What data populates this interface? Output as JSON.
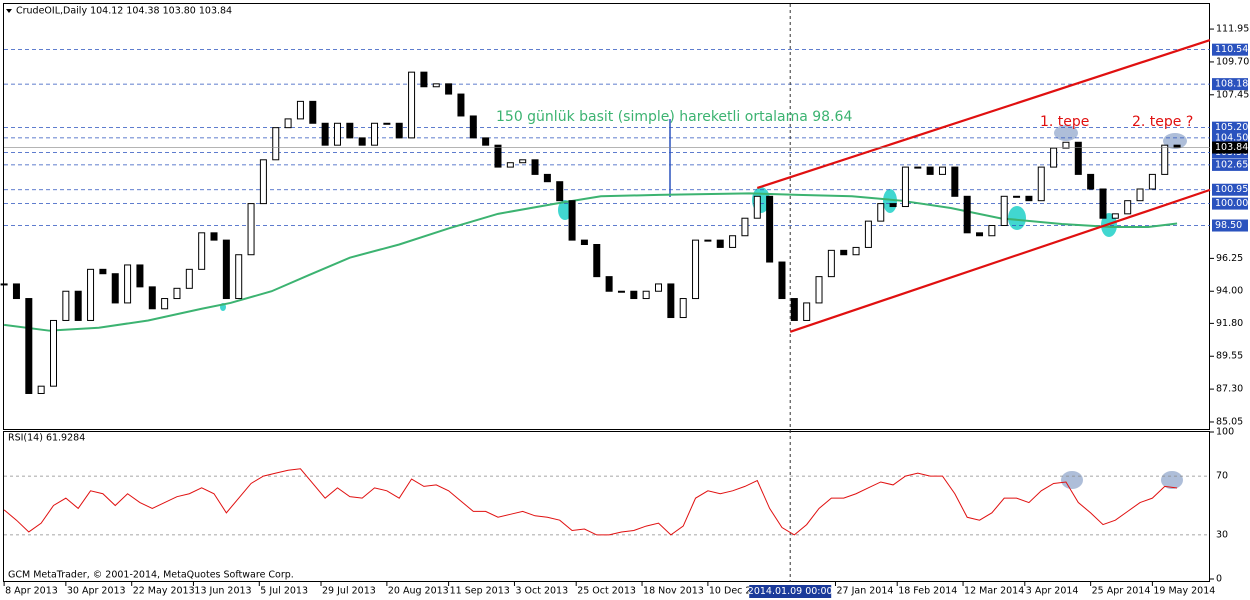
{
  "chart_data": {
    "type": "candlestick",
    "title": "CrudeOIL,Daily  104.12 104.38 103.80 103.84",
    "footer": "GCM MetaTrader, © 2001-2014, MetaQuotes Software Corp.",
    "xlim": [
      -1,
      293
    ],
    "ylim": [
      84.5,
      113.94
    ],
    "yticks": [
      111.95,
      {
        "value": 109.7,
        "label": "109.70"
      },
      107.45,
      96.25,
      {
        "value": 94,
        "label": "94.00"
      },
      {
        "value": 91.8,
        "label": "91.80"
      },
      89.55,
      {
        "value": 87.3,
        "label": "87.30"
      },
      85.05
    ],
    "xticks": [
      {
        "value": 0,
        "label": "8 Apr 2013"
      },
      {
        "value": 15,
        "label": "30 Apr 2013"
      },
      {
        "value": 31,
        "label": "22 May 2013"
      },
      {
        "value": 46,
        "label": "13 Jun 2013"
      },
      {
        "value": 62,
        "label": "5 Jul 2013"
      },
      {
        "value": 77,
        "label": "29 Jul 2013"
      },
      {
        "value": 93,
        "label": "20 Aug 2013"
      },
      {
        "value": 108,
        "label": "11 Sep 2013"
      },
      {
        "value": 124,
        "label": "3 Oct 2013"
      },
      {
        "value": 139,
        "label": "25 Oct 2013"
      },
      {
        "value": 155,
        "label": "18 Nov 2013"
      },
      {
        "value": 171,
        "label": "10 Dec 20"
      },
      {
        "value": 202,
        "label": "27 Jan 2014"
      },
      {
        "value": 217,
        "label": "18 Feb 2014"
      },
      {
        "value": 233,
        "label": "12 Mar 2014"
      },
      {
        "value": 248,
        "label": "3 Apr 2014"
      },
      {
        "value": 264,
        "label": "25 Apr 2014"
      },
      {
        "value": 279,
        "label": "19 May 2014"
      }
    ],
    "cursor": {
      "value": 191,
      "label": "2014.01.09 00:00"
    },
    "color": "#000000",
    "x": [
      0,
      3,
      6,
      9,
      12,
      15,
      18,
      21,
      24,
      27,
      30,
      33,
      36,
      39,
      42,
      45,
      48,
      51,
      54,
      57,
      60,
      63,
      66,
      69,
      72,
      75,
      78,
      81,
      84,
      87,
      90,
      93,
      96,
      99,
      102,
      105,
      108,
      111,
      114,
      117,
      120,
      123,
      126,
      129,
      132,
      135,
      138,
      141,
      144,
      147,
      150,
      153,
      156,
      159,
      162,
      165,
      168,
      171,
      174,
      177,
      180,
      183,
      186,
      189,
      192,
      195,
      198,
      201,
      204,
      207,
      210,
      213,
      216,
      219,
      222,
      225,
      228,
      231,
      234,
      237,
      240,
      243,
      246,
      249,
      252,
      255,
      258,
      261,
      264,
      267,
      270,
      273,
      276,
      279,
      282,
      285
    ],
    "values": [
      94.5,
      93.5,
      87,
      87.5,
      92,
      94,
      92,
      95.5,
      95.2,
      93.2,
      95.8,
      94.3,
      92.8,
      93.5,
      94.2,
      95.5,
      98,
      97.5,
      93.5,
      96.5,
      100,
      103,
      105.2,
      105.8,
      107,
      105.5,
      104,
      105.5,
      104.5,
      104,
      105.5,
      105.5,
      104.5,
      109,
      108,
      108.2,
      107.5,
      106,
      104.5,
      104,
      102.5,
      102.8,
      103,
      102,
      101.5,
      100.2,
      97.5,
      97.2,
      95,
      94,
      94,
      93.5,
      94,
      94.5,
      92.2,
      93.5,
      97.5,
      97.5,
      97,
      97.8,
      99,
      100.5,
      96,
      93.5,
      92,
      93.2,
      95,
      96.8,
      96.5,
      97,
      98.8,
      100,
      99.8,
      102.5,
      102.5,
      102,
      102.5,
      100.5,
      98,
      97.8,
      98.5,
      100.5,
      100.5,
      100.2,
      102.5,
      103.8,
      104.2,
      102,
      101,
      99,
      99.3,
      100.2,
      101,
      102,
      104,
      103.84
    ],
    "moving_average": {
      "color": "#3cb371",
      "x": [
        0,
        11,
        23,
        35,
        48,
        55,
        65,
        74,
        84,
        96,
        108,
        120,
        134,
        145,
        159,
        181,
        193,
        206,
        218,
        230,
        242,
        257,
        269,
        278,
        285
      ],
      "values": [
        91.7,
        91.3,
        91.5,
        92,
        92.8,
        93.2,
        94,
        95.1,
        96.3,
        97.2,
        98.3,
        99.3,
        100,
        100.5,
        100.6,
        100.7,
        100.6,
        100.5,
        100.2,
        99.7,
        99,
        98.6,
        98.4,
        98.4,
        98.64
      ]
    },
    "trend_lines": [
      {
        "color": "#e01010",
        "x": [
          183,
          293
        ],
        "values": [
          101.07,
          111.2
        ]
      },
      {
        "color": "#e01010",
        "x": [
          191,
          293
        ],
        "values": [
          91.22,
          100.94
        ]
      }
    ],
    "levels": [
      110.54,
      108.18,
      {
        "value": 105.2,
        "label": "105.20"
      },
      {
        "value": 104.5,
        "label": "104.50"
      },
      {
        "value": 103.5,
        "label": "103.50"
      },
      102.65,
      100.95,
      {
        "value": 100,
        "label": "100.00"
      },
      {
        "value": 98.5,
        "label": "98.50"
      }
    ],
    "level_color": "#2a52be",
    "current_price": 103.84,
    "annotations": [
      {
        "text": "150 günlük basit (simple) hareketli ortalama 98.64",
        "color": "#3cb371"
      },
      {
        "text": "1. tepe",
        "color": "#e01010"
      },
      {
        "text": "2. tepe ?",
        "color": "#e01010"
      }
    ],
    "rsi": {
      "label": "RSI(14) 61.9284",
      "color": "#e01010",
      "ylim": [
        0,
        100
      ],
      "yticks": [
        100,
        70,
        30,
        0
      ],
      "values": [
        47,
        40,
        32,
        38,
        50,
        55,
        48,
        60,
        58,
        50,
        58,
        52,
        48,
        52,
        56,
        58,
        62,
        58,
        45,
        55,
        65,
        70,
        72,
        74,
        75,
        65,
        55,
        62,
        56,
        55,
        62,
        60,
        55,
        68,
        63,
        64,
        60,
        53,
        46,
        46,
        42,
        44,
        46,
        43,
        42,
        40,
        33,
        34,
        30,
        30,
        32,
        33,
        36,
        38,
        30,
        36,
        55,
        60,
        58,
        60,
        63,
        67,
        48,
        35,
        30,
        37,
        48,
        55,
        55,
        58,
        62,
        66,
        64,
        70,
        72,
        70,
        70,
        58,
        42,
        40,
        45,
        55,
        55,
        52,
        60,
        65,
        66,
        52,
        45,
        37,
        40,
        46,
        52,
        55,
        63,
        61.9284
      ]
    }
  }
}
